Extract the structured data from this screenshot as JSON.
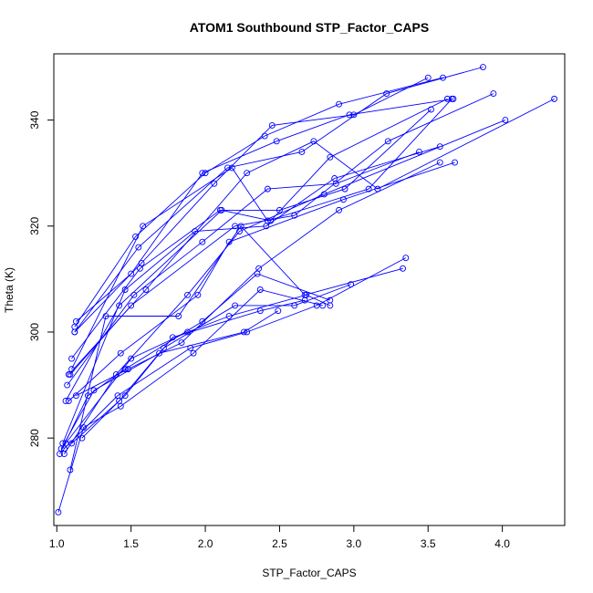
{
  "chart_data": {
    "type": "line",
    "title": "ATOM1 Southbound STP_Factor_CAPS",
    "xlabel": "STP_Factor_CAPS",
    "ylabel": "Theta (K)",
    "xlim": [
      0.98,
      4.42
    ],
    "ylim": [
      263.5,
      352.5
    ],
    "xticks": [
      1.0,
      1.5,
      2.0,
      2.5,
      3.0,
      3.5,
      4.0
    ],
    "xtick_labels": [
      "1.0",
      "1.5",
      "2.0",
      "2.5",
      "3.0",
      "3.5",
      "4.0"
    ],
    "yticks": [
      280,
      300,
      320,
      340
    ],
    "ytick_labels": [
      "280",
      "300",
      "320",
      "340"
    ],
    "grid": false,
    "legend": "none",
    "marker": "open-circle",
    "color": "#0000ff",
    "series": [
      {
        "x": [
          1.12,
          1.53,
          2.0,
          2.4,
          2.9,
          3.6
        ],
        "y": [
          301,
          318,
          330,
          337,
          343,
          348
        ]
      },
      {
        "x": [
          1.12,
          1.57,
          2.06,
          2.45,
          3.0,
          3.5
        ],
        "y": [
          300,
          313,
          328,
          339,
          341,
          348
        ]
      },
      {
        "x": [
          1.12,
          1.55,
          2.15,
          2.65,
          3.22,
          3.87
        ],
        "y": [
          300,
          316,
          331,
          334,
          345,
          350
        ]
      },
      {
        "x": [
          1.13,
          1.5,
          1.98,
          2.48,
          2.97,
          3.67
        ],
        "y": [
          302,
          311,
          330,
          336,
          341,
          344
        ]
      },
      {
        "x": [
          1.06,
          1.42,
          2.11,
          2.44,
          2.84,
          3.63
        ],
        "y": [
          287,
          305,
          323,
          321,
          333,
          344
        ]
      },
      {
        "x": [
          1.1,
          1.58,
          2.18,
          2.42,
          3.1,
          3.66
        ],
        "y": [
          293,
          320,
          331,
          321,
          327,
          344
        ]
      },
      {
        "x": [
          1.08,
          1.6,
          2.28,
          2.73,
          3.16,
          4.35
        ],
        "y": [
          292,
          308,
          330,
          336,
          327,
          344
        ]
      },
      {
        "x": [
          1.09,
          1.5,
          2.2,
          2.6,
          3.23,
          3.94
        ],
        "y": [
          292,
          305,
          320,
          322,
          336,
          345
        ]
      },
      {
        "x": [
          1.1,
          1.56,
          2.1,
          2.5,
          2.94,
          3.52
        ],
        "y": [
          295,
          312,
          323,
          323,
          327,
          342
        ]
      },
      {
        "x": [
          1.04,
          1.46,
          1.93,
          2.41,
          2.87,
          3.58
        ],
        "y": [
          279,
          308,
          319,
          320,
          329,
          335
        ]
      },
      {
        "x": [
          1.07,
          1.52,
          1.98,
          2.42,
          2.88,
          3.44
        ],
        "y": [
          290,
          307,
          317,
          327,
          328,
          334
        ]
      },
      {
        "x": [
          1.08,
          1.43,
          1.95,
          2.16,
          2.93,
          3.68
        ],
        "y": [
          287,
          296,
          307,
          317,
          325,
          332
        ]
      },
      {
        "x": [
          1.05,
          1.4,
          1.88,
          2.23,
          2.8,
          4.02
        ],
        "y": [
          277,
          292,
          307,
          319,
          326,
          340
        ]
      },
      {
        "x": [
          1.13,
          1.48,
          1.84,
          2.36,
          2.9,
          3.58
        ],
        "y": [
          288,
          293,
          298,
          312,
          323,
          332
        ]
      },
      {
        "x": [
          1.09,
          1.33,
          1.82,
          2.24,
          2.67,
          3.33
        ],
        "y": [
          274,
          303,
          303,
          320,
          307,
          312
        ]
      },
      {
        "x": [
          1.17,
          1.42,
          1.72,
          2.2,
          2.6,
          2.98
        ],
        "y": [
          280,
          287,
          297,
          305,
          305,
          309
        ]
      },
      {
        "x": [
          1.05,
          1.41,
          1.9,
          2.28,
          2.75,
          3.35
        ],
        "y": [
          278,
          288,
          297,
          300,
          305,
          314
        ]
      },
      {
        "x": [
          1.06,
          1.5,
          1.88,
          2.16,
          2.68,
          2.84
        ],
        "y": [
          279,
          295,
          300,
          303,
          307,
          305
        ]
      },
      {
        "x": [
          1.1,
          1.46,
          1.78,
          2.37,
          2.67
        ],
        "y": [
          279,
          288,
          299,
          304,
          306
        ]
      },
      {
        "x": [
          1.03,
          1.25,
          1.69,
          2.26,
          2.49
        ],
        "y": [
          278,
          289,
          296,
          300,
          304
        ]
      },
      {
        "x": [
          1.02,
          1.21,
          1.46,
          1.98,
          2.35,
          2.84
        ],
        "y": [
          277,
          288,
          293,
          302,
          311,
          306
        ]
      },
      {
        "x": [
          1.01,
          1.18,
          1.43,
          1.92,
          2.37,
          2.79
        ],
        "y": [
          266,
          282,
          286,
          296,
          308,
          305
        ]
      }
    ]
  }
}
